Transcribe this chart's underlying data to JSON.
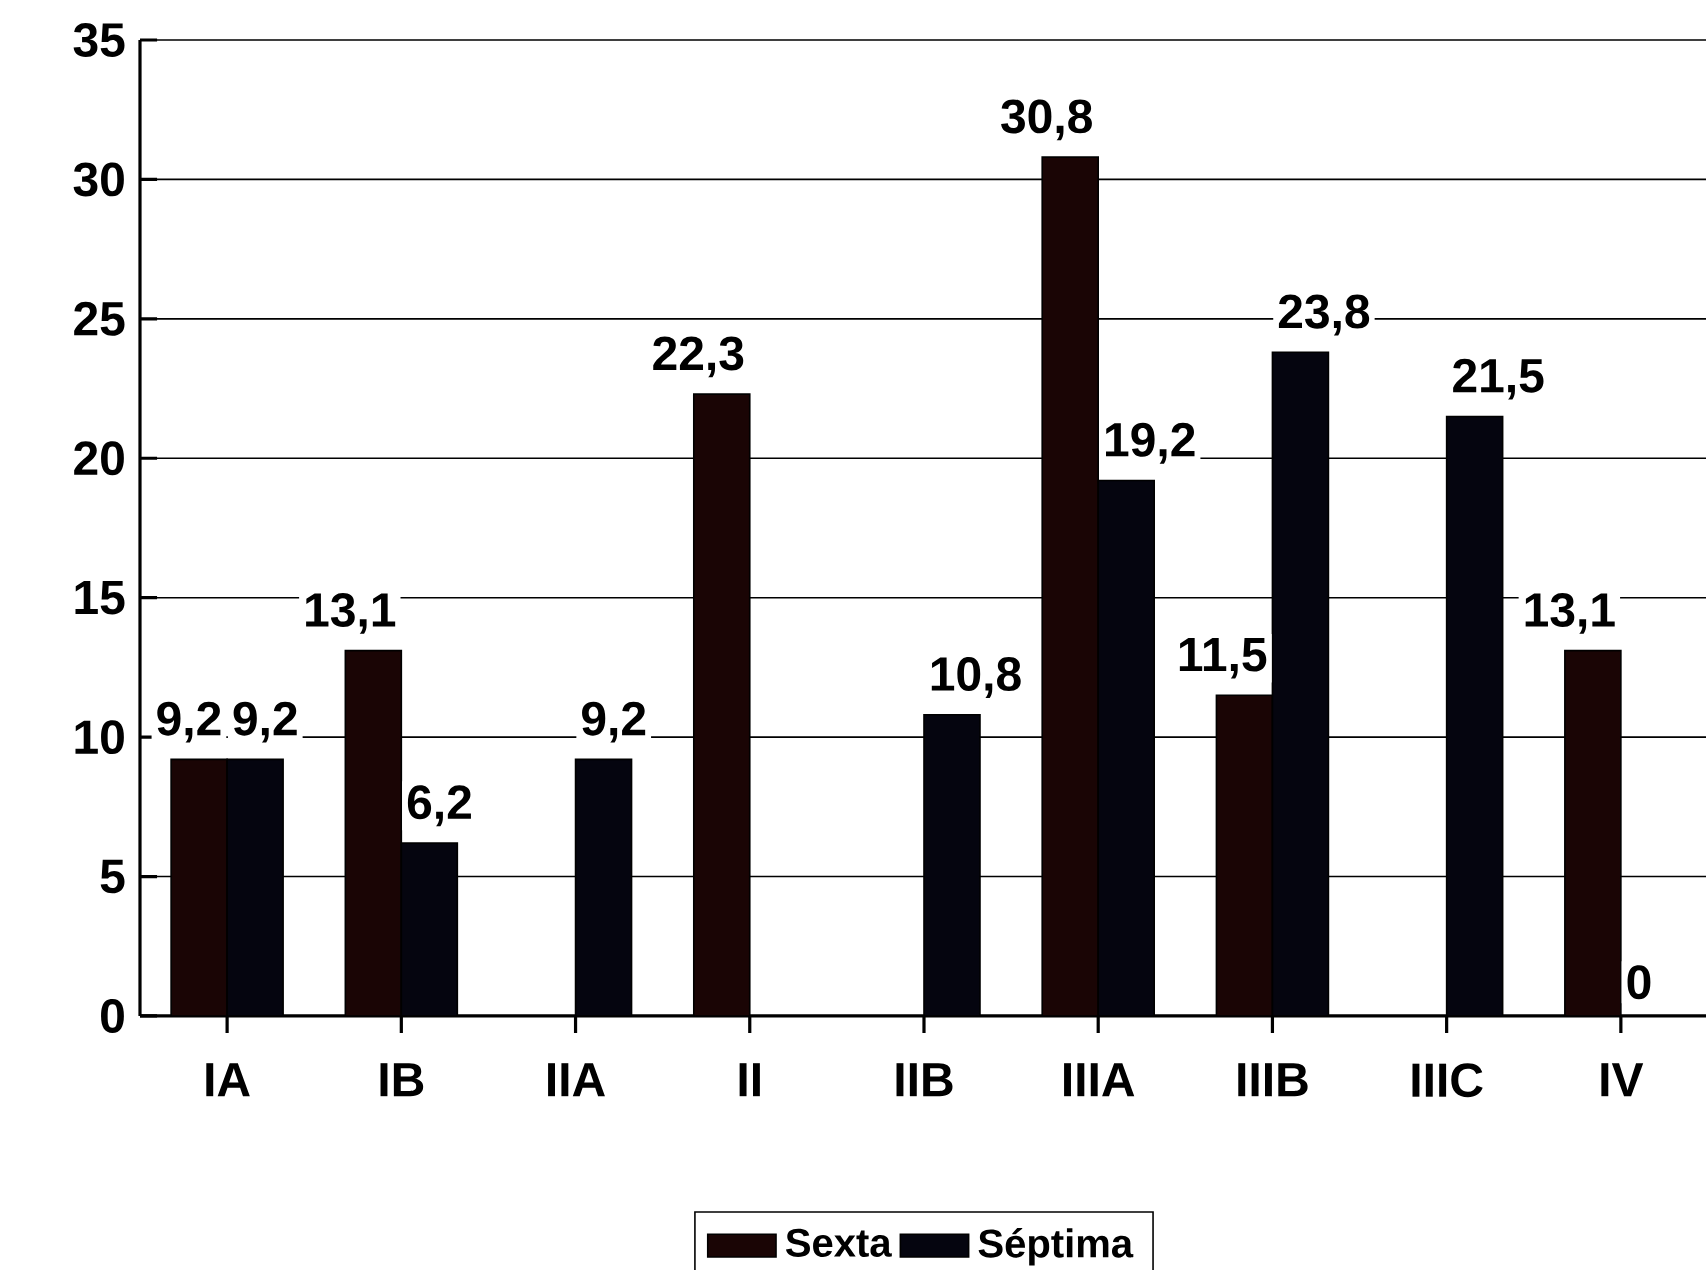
{
  "chart_data": {
    "type": "bar",
    "categories": [
      "IA",
      "IB",
      "IIA",
      "II",
      "IIB",
      "IIIA",
      "IIIB",
      "IIIC",
      "IV"
    ],
    "series": [
      {
        "name": "Sexta",
        "color": "#1a0505",
        "values": [
          9.2,
          13.1,
          null,
          22.3,
          null,
          30.8,
          11.5,
          null,
          13.1
        ],
        "value_labels": [
          "9,2",
          "13,1",
          null,
          "22,3",
          null,
          "30,8",
          "11,5",
          null,
          "13,1"
        ]
      },
      {
        "name": "Séptima",
        "color": "#05050f",
        "values": [
          9.2,
          6.2,
          9.2,
          null,
          10.8,
          19.2,
          23.8,
          21.5,
          0
        ],
        "value_labels": [
          "9,2",
          "6,2",
          "9,2",
          null,
          "10,8",
          "19,2",
          "23,8",
          "21,5",
          "0"
        ]
      }
    ],
    "ylim": [
      0,
      35
    ],
    "yticks": [
      0,
      5,
      10,
      15,
      20,
      25,
      30,
      35
    ],
    "grid": "y",
    "legend": "bottom"
  }
}
